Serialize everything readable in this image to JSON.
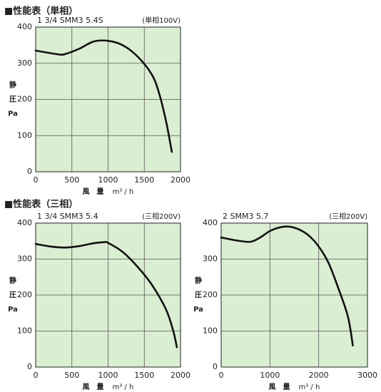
{
  "headings": [
    "■性能表（単相）",
    "■性能表（三相）"
  ],
  "chart_data": [
    {
      "type": "line",
      "title": "1 3/4 SMM3 5.4S",
      "subtitle": "(単相100V)",
      "ylabel": [
        "静",
        "圧",
        "Pa"
      ],
      "xlabel": "風　量",
      "xunit": "m³ / h",
      "x": [
        0,
        300,
        400,
        600,
        800,
        1000,
        1200,
        1400,
        1600,
        1700,
        1800,
        1880
      ],
      "series": [
        {
          "color": "#111111",
          "values": [
            335,
            325,
            325,
            340,
            360,
            362,
            350,
            320,
            270,
            220,
            140,
            55
          ]
        }
      ],
      "xlim": [
        0,
        2000
      ],
      "xticks": [
        0,
        500,
        1000,
        1500,
        2000
      ],
      "ylim": [
        0,
        400
      ],
      "yticks": [
        0,
        100,
        200,
        300,
        400
      ],
      "grid": true,
      "background": "#daeed2"
    },
    {
      "type": "line",
      "title": "1 3/4 SMM3 5.4",
      "subtitle": "(三相200V)",
      "ylabel": [
        "静",
        "圧",
        "Pa"
      ],
      "xlabel": "風　量",
      "xunit": "m³ / h",
      "x": [
        0,
        200,
        400,
        600,
        800,
        950,
        1000,
        1200,
        1400,
        1600,
        1800,
        1900,
        1950
      ],
      "series": [
        {
          "color": "#111111",
          "values": [
            342,
            335,
            332,
            336,
            344,
            347,
            345,
            320,
            280,
            230,
            160,
            100,
            55
          ]
        }
      ],
      "xlim": [
        0,
        2000
      ],
      "xticks": [
        0,
        500,
        1000,
        1500,
        2000
      ],
      "ylim": [
        0,
        400
      ],
      "yticks": [
        0,
        100,
        200,
        300,
        400
      ],
      "grid": true,
      "background": "#daeed2"
    },
    {
      "type": "line",
      "title": "2 SMM3 5.7",
      "subtitle": "(三相200V)",
      "ylabel": [
        "静",
        "圧",
        "Pa"
      ],
      "xlabel": "風　量",
      "xunit": "m³ / h",
      "x": [
        0,
        300,
        600,
        800,
        1000,
        1200,
        1400,
        1600,
        1800,
        2000,
        2200,
        2400,
        2600,
        2700
      ],
      "series": [
        {
          "color": "#111111",
          "values": [
            360,
            352,
            348,
            360,
            378,
            388,
            390,
            382,
            365,
            335,
            290,
            220,
            140,
            60
          ]
        }
      ],
      "xlim": [
        0,
        3000
      ],
      "xticks": [
        0,
        1000,
        2000,
        3000
      ],
      "ylim": [
        0,
        400
      ],
      "yticks": [
        0,
        100,
        200,
        300,
        400
      ],
      "grid": true,
      "background": "#daeed2"
    }
  ]
}
